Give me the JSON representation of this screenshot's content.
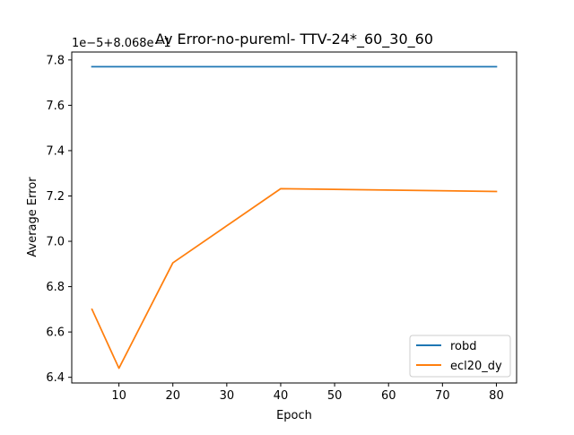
{
  "chart_data": {
    "type": "line",
    "title": "Av Error-no-pureml- TTV-24*_60_30_60",
    "xlabel": "Epoch",
    "ylabel": "Average Error",
    "y_offset_label": "1e−5+8.068e−1",
    "x_ticks": [
      10,
      20,
      30,
      40,
      50,
      60,
      70,
      80
    ],
    "y_ticks": [
      6.4,
      6.6,
      6.8,
      7.0,
      7.2,
      7.4,
      7.6,
      7.8
    ],
    "y_tick_labels": [
      "6.4",
      "6.6",
      "6.8",
      "7.0",
      "7.2",
      "7.4",
      "7.6",
      "7.8"
    ],
    "xlim": [
      1.25,
      83.75
    ],
    "ylim": [
      6.375,
      7.835
    ],
    "grid": false,
    "legend_position": "lower-right",
    "series": [
      {
        "name": "robd",
        "color": "#1f77b4",
        "x": [
          5,
          10,
          20,
          40,
          80
        ],
        "y": [
          7.77,
          7.77,
          7.77,
          7.77,
          7.77
        ]
      },
      {
        "name": "ecl20_dy",
        "color": "#ff7f0e",
        "x": [
          5,
          10,
          20,
          40,
          80
        ],
        "y": [
          6.7,
          6.44,
          6.905,
          7.232,
          7.22
        ]
      }
    ]
  }
}
